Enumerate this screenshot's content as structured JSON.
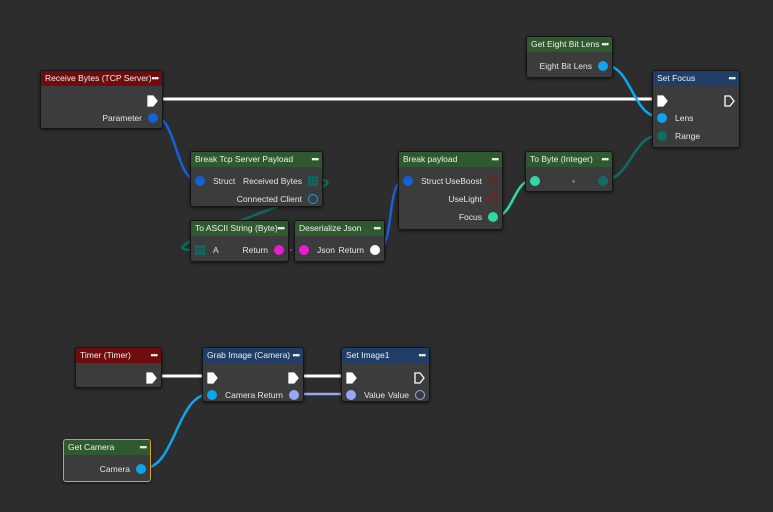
{
  "colors": {
    "background": "#2d2d2d",
    "event_header": "#6e0d0d",
    "pure_header": "#2f5a2f",
    "call_header": "#203e66",
    "exec": "#ffffff",
    "struct": "#1660d8",
    "byte_array": "#0c6b60",
    "string": "#e81ad4",
    "json": "#ffffff",
    "bool": "#9a1010",
    "float": "#2ed9a8",
    "byte": "#0f6e64",
    "lens": "#0ea5ec",
    "image": "#9aa6f0",
    "selected": "#e0a020"
  },
  "nodes": [
    {
      "id": "receive",
      "title": "Receive Bytes (TCP Server)",
      "kind": "event",
      "rows": [
        {
          "r": {
            "type": "exec",
            "label": ""
          }
        },
        {
          "r": {
            "type": "circle",
            "color": "#1660d8",
            "label": "Parameter"
          }
        }
      ]
    },
    {
      "id": "lens",
      "title": "Get Eight Bit Lens",
      "kind": "pure",
      "rows": [
        {
          "r": {
            "type": "circle",
            "color": "#0ea5ec",
            "label": "Eight Bit Lens"
          }
        }
      ]
    },
    {
      "id": "focus",
      "title": "Set Focus",
      "kind": "call",
      "rows": [
        {
          "l": {
            "type": "exec",
            "label": ""
          },
          "r": {
            "type": "exec-hollow",
            "label": ""
          }
        },
        {
          "l": {
            "type": "circle",
            "color": "#0ea5ec",
            "label": "Lens"
          }
        },
        {
          "l": {
            "type": "circle",
            "color": "#0f6e64",
            "label": "Range"
          }
        }
      ]
    },
    {
      "id": "breaktcp",
      "title": "Break Tcp Server Payload",
      "kind": "pure",
      "rows": [
        {
          "l": {
            "type": "circle",
            "color": "#1660d8",
            "label": "Struct"
          },
          "r": {
            "type": "grid",
            "color": "#0c6b60",
            "label": "Received Bytes"
          }
        },
        {
          "r": {
            "type": "hollow",
            "color": "#0ea5ec",
            "label": "Connected Client"
          }
        }
      ]
    },
    {
      "id": "breakpayload",
      "title": "Break payload",
      "kind": "pure",
      "rows": [
        {
          "l": {
            "type": "circle",
            "color": "#1660d8",
            "label": "Struct"
          },
          "r": {
            "type": "hollow",
            "color": "#9a1010",
            "label": "UseBoost"
          }
        },
        {
          "r": {
            "type": "hollow",
            "color": "#9a1010",
            "label": "UseLight"
          }
        },
        {
          "r": {
            "type": "circle",
            "color": "#2ed9a8",
            "label": "Focus"
          }
        }
      ]
    },
    {
      "id": "tobyte",
      "title": "To Byte (Integer)",
      "kind": "pure",
      "rows": [
        {
          "l": {
            "type": "circle",
            "color": "#2ed9a8",
            "label": ""
          },
          "c": true,
          "r": {
            "type": "circle",
            "color": "#0f6e64",
            "label": ""
          }
        }
      ]
    },
    {
      "id": "ascii",
      "title": "To ASCII String (Byte)",
      "kind": "pure",
      "rows": [
        {
          "l": {
            "type": "grid",
            "color": "#0c6b60",
            "label": "A"
          },
          "r": {
            "type": "circle",
            "color": "#e81ad4",
            "label": "Return"
          }
        }
      ]
    },
    {
      "id": "json",
      "title": "Deserialize Json",
      "kind": "pure",
      "rows": [
        {
          "l": {
            "type": "circle",
            "color": "#e81ad4",
            "label": "Json"
          },
          "r": {
            "type": "circle",
            "color": "#ffffff",
            "label": "Return"
          }
        }
      ]
    },
    {
      "id": "timer",
      "title": "Timer (Timer)",
      "kind": "event",
      "rows": [
        {
          "r": {
            "type": "exec",
            "label": ""
          }
        }
      ]
    },
    {
      "id": "grab",
      "title": "Grab Image (Camera)",
      "kind": "call",
      "rows": [
        {
          "l": {
            "type": "exec",
            "label": ""
          },
          "r": {
            "type": "exec",
            "label": ""
          }
        },
        {
          "l": {
            "type": "circle",
            "color": "#0ea5ec",
            "label": "Camera"
          },
          "r": {
            "type": "circle",
            "color": "#9aa6f0",
            "label": "Return"
          }
        }
      ]
    },
    {
      "id": "setimage",
      "title": "Set Image1",
      "kind": "call",
      "rows": [
        {
          "l": {
            "type": "exec",
            "label": ""
          },
          "r": {
            "type": "exec-hollow",
            "label": ""
          }
        },
        {
          "l": {
            "type": "circle",
            "color": "#9aa6f0",
            "label": "Value"
          },
          "r": {
            "type": "hollow",
            "color": "#9aa6f0",
            "label": "Value"
          }
        }
      ]
    },
    {
      "id": "camera",
      "title": "Get Camera",
      "kind": "pure",
      "selected": true,
      "rows": [
        {
          "r": {
            "type": "circle",
            "color": "#0ea5ec",
            "label": "Camera"
          }
        }
      ]
    }
  ],
  "menu_icon": "ellipsis-icon"
}
